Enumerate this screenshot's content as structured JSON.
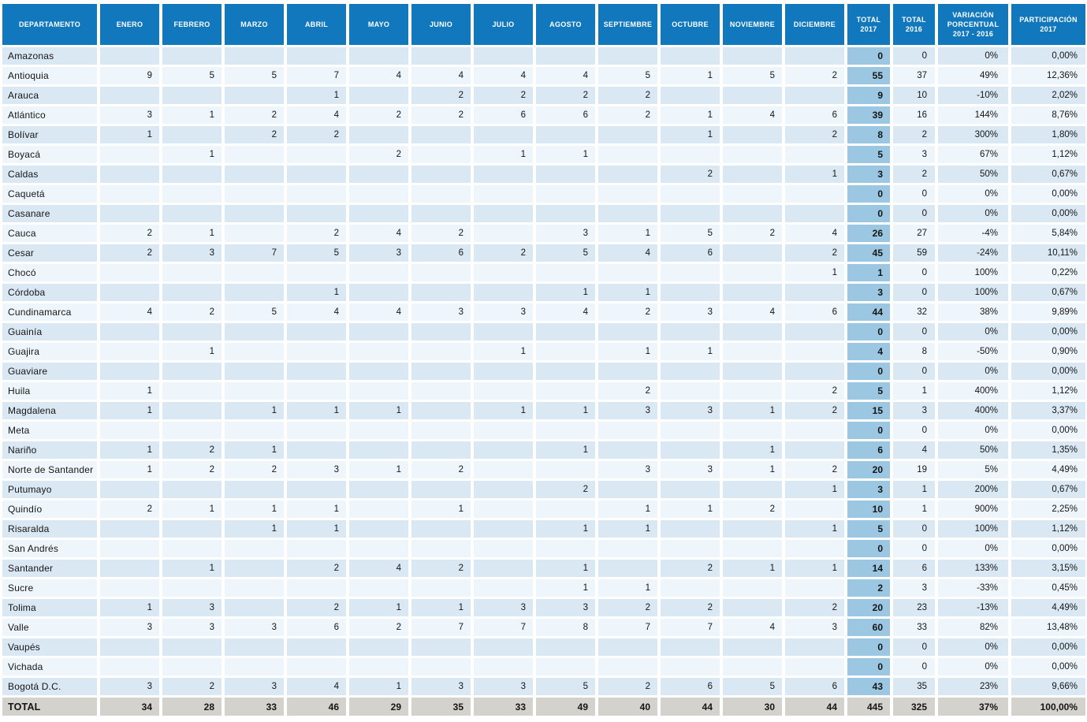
{
  "table": {
    "columns": [
      "DEPARTAMENTO",
      "ENERO",
      "FEBRERO",
      "MARZO",
      "ABRIL",
      "MAYO",
      "JUNIO",
      "JULIO",
      "AGOSTO",
      "SEPTIEMBRE",
      "OCTUBRE",
      "NOVIEMBRE",
      "DICIEMBRE",
      "TOTAL\n2017",
      "TOTAL\n2016",
      "VARIACIÓN\nPORCENTUAL\n2017 - 2016",
      "PARTICIPACIÓN\n2017"
    ],
    "rows": [
      {
        "name": "Amazonas",
        "months": [
          "",
          "",
          "",
          "",
          "",
          "",
          "",
          "",
          "",
          "",
          "",
          ""
        ],
        "total_2017": "0",
        "total_2016": "0",
        "variacion": "0%",
        "participacion": "0,00%"
      },
      {
        "name": "Antioquia",
        "months": [
          "9",
          "5",
          "5",
          "7",
          "4",
          "4",
          "4",
          "4",
          "5",
          "1",
          "5",
          "2"
        ],
        "total_2017": "55",
        "total_2016": "37",
        "variacion": "49%",
        "participacion": "12,36%"
      },
      {
        "name": "Arauca",
        "months": [
          "",
          "",
          "",
          "1",
          "",
          "2",
          "2",
          "2",
          "2",
          "",
          "",
          ""
        ],
        "total_2017": "9",
        "total_2016": "10",
        "variacion": "-10%",
        "participacion": "2,02%"
      },
      {
        "name": "Atlántico",
        "months": [
          "3",
          "1",
          "2",
          "4",
          "2",
          "2",
          "6",
          "6",
          "2",
          "1",
          "4",
          "6"
        ],
        "total_2017": "39",
        "total_2016": "16",
        "variacion": "144%",
        "participacion": "8,76%"
      },
      {
        "name": "Bolívar",
        "months": [
          "1",
          "",
          "2",
          "2",
          "",
          "",
          "",
          "",
          "",
          "1",
          "",
          "2"
        ],
        "total_2017": "8",
        "total_2016": "2",
        "variacion": "300%",
        "participacion": "1,80%"
      },
      {
        "name": "Boyacá",
        "months": [
          "",
          "1",
          "",
          "",
          "2",
          "",
          "1",
          "1",
          "",
          "",
          "",
          ""
        ],
        "total_2017": "5",
        "total_2016": "3",
        "variacion": "67%",
        "participacion": "1,12%"
      },
      {
        "name": "Caldas",
        "months": [
          "",
          "",
          "",
          "",
          "",
          "",
          "",
          "",
          "",
          "2",
          "",
          "1"
        ],
        "total_2017": "3",
        "total_2016": "2",
        "variacion": "50%",
        "participacion": "0,67%"
      },
      {
        "name": "Caquetá",
        "months": [
          "",
          "",
          "",
          "",
          "",
          "",
          "",
          "",
          "",
          "",
          "",
          ""
        ],
        "total_2017": "0",
        "total_2016": "0",
        "variacion": "0%",
        "participacion": "0,00%"
      },
      {
        "name": "Casanare",
        "months": [
          "",
          "",
          "",
          "",
          "",
          "",
          "",
          "",
          "",
          "",
          "",
          ""
        ],
        "total_2017": "0",
        "total_2016": "0",
        "variacion": "0%",
        "participacion": "0,00%"
      },
      {
        "name": "Cauca",
        "months": [
          "2",
          "1",
          "",
          "2",
          "4",
          "2",
          "",
          "3",
          "1",
          "5",
          "2",
          "4"
        ],
        "total_2017": "26",
        "total_2016": "27",
        "variacion": "-4%",
        "participacion": "5,84%"
      },
      {
        "name": "Cesar",
        "months": [
          "2",
          "3",
          "7",
          "5",
          "3",
          "6",
          "2",
          "5",
          "4",
          "6",
          "",
          "2"
        ],
        "total_2017": "45",
        "total_2016": "59",
        "variacion": "-24%",
        "participacion": "10,11%"
      },
      {
        "name": "Chocó",
        "months": [
          "",
          "",
          "",
          "",
          "",
          "",
          "",
          "",
          "",
          "",
          "",
          "1"
        ],
        "total_2017": "1",
        "total_2016": "0",
        "variacion": "100%",
        "participacion": "0,22%"
      },
      {
        "name": "Córdoba",
        "months": [
          "",
          "",
          "",
          "1",
          "",
          "",
          "",
          "1",
          "1",
          "",
          "",
          ""
        ],
        "total_2017": "3",
        "total_2016": "0",
        "variacion": "100%",
        "participacion": "0,67%"
      },
      {
        "name": "Cundinamarca",
        "months": [
          "4",
          "2",
          "5",
          "4",
          "4",
          "3",
          "3",
          "4",
          "2",
          "3",
          "4",
          "6"
        ],
        "total_2017": "44",
        "total_2016": "32",
        "variacion": "38%",
        "participacion": "9,89%"
      },
      {
        "name": "Guainía",
        "months": [
          "",
          "",
          "",
          "",
          "",
          "",
          "",
          "",
          "",
          "",
          "",
          ""
        ],
        "total_2017": "0",
        "total_2016": "0",
        "variacion": "0%",
        "participacion": "0,00%"
      },
      {
        "name": "Guajira",
        "months": [
          "",
          "1",
          "",
          "",
          "",
          "",
          "1",
          "",
          "1",
          "1",
          "",
          ""
        ],
        "total_2017": "4",
        "total_2016": "8",
        "variacion": "-50%",
        "participacion": "0,90%"
      },
      {
        "name": "Guaviare",
        "months": [
          "",
          "",
          "",
          "",
          "",
          "",
          "",
          "",
          "",
          "",
          "",
          ""
        ],
        "total_2017": "0",
        "total_2016": "0",
        "variacion": "0%",
        "participacion": "0,00%"
      },
      {
        "name": "Huila",
        "months": [
          "1",
          "",
          "",
          "",
          "",
          "",
          "",
          "",
          "2",
          "",
          "",
          "2"
        ],
        "total_2017": "5",
        "total_2016": "1",
        "variacion": "400%",
        "participacion": "1,12%"
      },
      {
        "name": "Magdalena",
        "months": [
          "1",
          "",
          "1",
          "1",
          "1",
          "",
          "1",
          "1",
          "3",
          "3",
          "1",
          "2"
        ],
        "total_2017": "15",
        "total_2016": "3",
        "variacion": "400%",
        "participacion": "3,37%"
      },
      {
        "name": "Meta",
        "months": [
          "",
          "",
          "",
          "",
          "",
          "",
          "",
          "",
          "",
          "",
          "",
          ""
        ],
        "total_2017": "0",
        "total_2016": "0",
        "variacion": "0%",
        "participacion": "0,00%"
      },
      {
        "name": "Nariño",
        "months": [
          "1",
          "2",
          "1",
          "",
          "",
          "",
          "",
          "1",
          "",
          "",
          "1",
          ""
        ],
        "total_2017": "6",
        "total_2016": "4",
        "variacion": "50%",
        "participacion": "1,35%"
      },
      {
        "name": "Norte de Santander",
        "months": [
          "1",
          "2",
          "2",
          "3",
          "1",
          "2",
          "",
          "",
          "3",
          "3",
          "1",
          "2"
        ],
        "total_2017": "20",
        "total_2016": "19",
        "variacion": "5%",
        "participacion": "4,49%"
      },
      {
        "name": "Putumayo",
        "months": [
          "",
          "",
          "",
          "",
          "",
          "",
          "",
          "2",
          "",
          "",
          "",
          "1"
        ],
        "total_2017": "3",
        "total_2016": "1",
        "variacion": "200%",
        "participacion": "0,67%"
      },
      {
        "name": "Quindío",
        "months": [
          "2",
          "1",
          "1",
          "1",
          "",
          "1",
          "",
          "",
          "1",
          "1",
          "2",
          ""
        ],
        "total_2017": "10",
        "total_2016": "1",
        "variacion": "900%",
        "participacion": "2,25%"
      },
      {
        "name": "Risaralda",
        "months": [
          "",
          "",
          "1",
          "1",
          "",
          "",
          "",
          "1",
          "1",
          "",
          "",
          "1"
        ],
        "total_2017": "5",
        "total_2016": "0",
        "variacion": "100%",
        "participacion": "1,12%"
      },
      {
        "name": "San Andrés",
        "months": [
          "",
          "",
          "",
          "",
          "",
          "",
          "",
          "",
          "",
          "",
          "",
          ""
        ],
        "total_2017": "0",
        "total_2016": "0",
        "variacion": "0%",
        "participacion": "0,00%"
      },
      {
        "name": "Santander",
        "months": [
          "",
          "1",
          "",
          "2",
          "4",
          "2",
          "",
          "1",
          "",
          "2",
          "1",
          "1"
        ],
        "total_2017": "14",
        "total_2016": "6",
        "variacion": "133%",
        "participacion": "3,15%"
      },
      {
        "name": "Sucre",
        "months": [
          "",
          "",
          "",
          "",
          "",
          "",
          "",
          "1",
          "1",
          "",
          "",
          ""
        ],
        "total_2017": "2",
        "total_2016": "3",
        "variacion": "-33%",
        "participacion": "0,45%"
      },
      {
        "name": "Tolima",
        "months": [
          "1",
          "3",
          "",
          "2",
          "1",
          "1",
          "3",
          "3",
          "2",
          "2",
          "",
          "2"
        ],
        "total_2017": "20",
        "total_2016": "23",
        "variacion": "-13%",
        "participacion": "4,49%"
      },
      {
        "name": "Valle",
        "months": [
          "3",
          "3",
          "3",
          "6",
          "2",
          "7",
          "7",
          "8",
          "7",
          "7",
          "4",
          "3"
        ],
        "total_2017": "60",
        "total_2016": "33",
        "variacion": "82%",
        "participacion": "13,48%"
      },
      {
        "name": "Vaupés",
        "months": [
          "",
          "",
          "",
          "",
          "",
          "",
          "",
          "",
          "",
          "",
          "",
          ""
        ],
        "total_2017": "0",
        "total_2016": "0",
        "variacion": "0%",
        "participacion": "0,00%"
      },
      {
        "name": "Vichada",
        "months": [
          "",
          "",
          "",
          "",
          "",
          "",
          "",
          "",
          "",
          "",
          "",
          ""
        ],
        "total_2017": "0",
        "total_2016": "0",
        "variacion": "0%",
        "participacion": "0,00%"
      },
      {
        "name": "Bogotá D.C.",
        "months": [
          "3",
          "2",
          "3",
          "4",
          "1",
          "3",
          "3",
          "5",
          "2",
          "6",
          "5",
          "6"
        ],
        "total_2017": "43",
        "total_2016": "35",
        "variacion": "23%",
        "participacion": "9,66%"
      }
    ],
    "total": {
      "label": "TOTAL",
      "months": [
        "34",
        "28",
        "33",
        "46",
        "29",
        "35",
        "33",
        "49",
        "40",
        "44",
        "30",
        "44"
      ],
      "total_2017": "445",
      "total_2016": "325",
      "variacion": "37%",
      "participacion": "100,00%"
    }
  },
  "colors": {
    "header_bg": "#1278BD",
    "row_odd_bg": "#DAE8F4",
    "row_even_bg": "#EFF6FB",
    "total_2017_col_bg": "#9CC7E3",
    "total_row_bg": "#D3D2CC"
  }
}
